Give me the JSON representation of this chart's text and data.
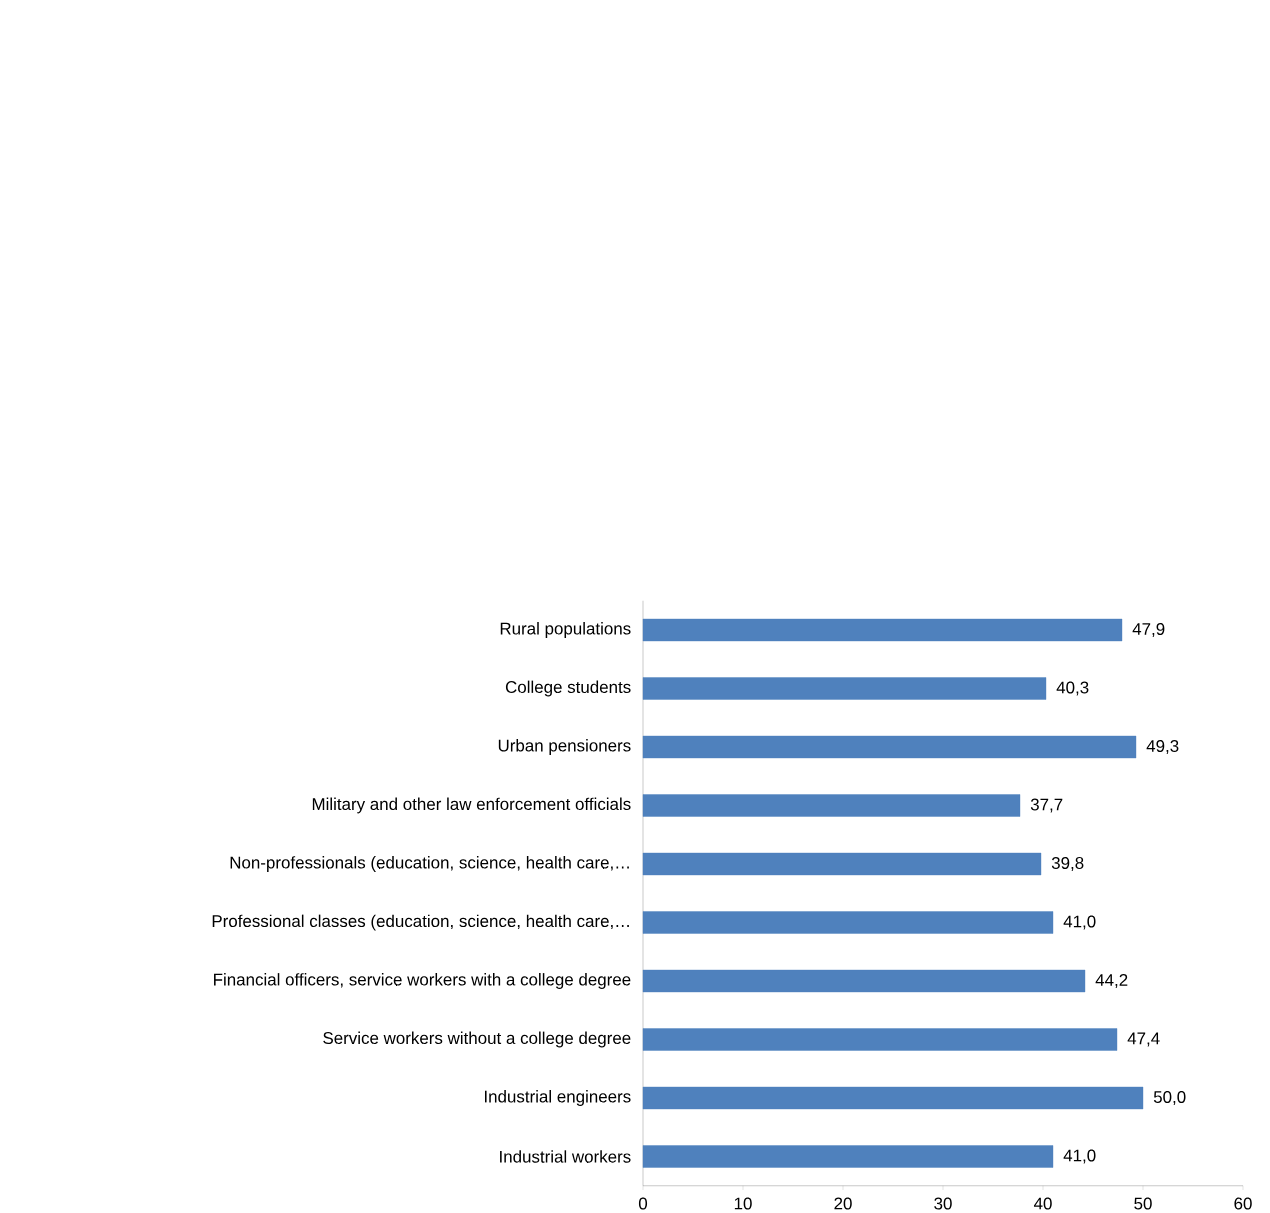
{
  "chart_data": {
    "type": "bar",
    "orientation": "horizontal",
    "categories": [
      "Rural populations",
      "College students",
      "Urban pensioners",
      "Military and other law enforcement officials",
      "Non-professionals (education, science, health care,…",
      "Professional classes (education, science, health care,…",
      "Financial officers, service workers with a college degree",
      "Service workers without a college degree",
      "Industrial engineers",
      "Industrial workers"
    ],
    "values": [
      47.9,
      40.3,
      49.3,
      37.7,
      39.8,
      41.0,
      44.2,
      47.4,
      50.0,
      41.0
    ],
    "value_labels": [
      "47,9",
      "40,3",
      "49,3",
      "37,7",
      "39,8",
      "41,0",
      "44,2",
      "47,4",
      "50,0",
      "41,0"
    ],
    "color": "#4f81bd",
    "xlim": [
      0,
      60
    ],
    "xticks": [
      0,
      10,
      20,
      30,
      40,
      50,
      60
    ]
  }
}
